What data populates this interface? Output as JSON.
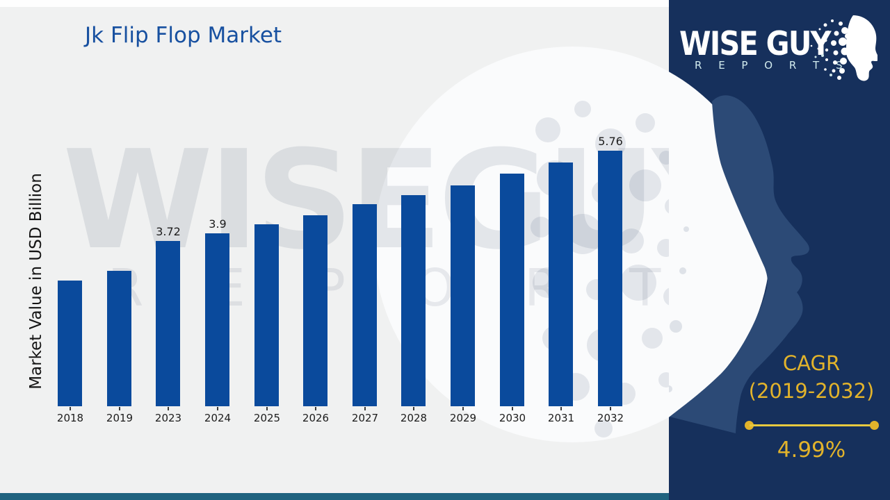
{
  "page": {
    "background": "#f0f1f1",
    "top_strip_color": "#fefefe",
    "bottom_strip_color": "#20637f"
  },
  "header": {
    "title": "Jk Flip Flop Market",
    "title_color": "#1750a0"
  },
  "watermark": {
    "line1": "WISEGUY",
    "line2": "R E P O R T S"
  },
  "brand_panel": {
    "bg_color": "#16305c",
    "face_color": "#2c4a76",
    "logo_line1": "WISE GUY",
    "logo_line2": "R E P O R T S",
    "cagr": {
      "label": "CAGR",
      "range": "(2019-2032)",
      "value": "4.99%",
      "accent_color": "#e2b32b"
    }
  },
  "chart_data": {
    "type": "bar",
    "title": "Jk Flip Flop Market",
    "xlabel": "",
    "ylabel": "Market Value in USD Billion",
    "categories": [
      "2018",
      "2019",
      "2023",
      "2024",
      "2025",
      "2026",
      "2027",
      "2028",
      "2029",
      "2030",
      "2031",
      "2032"
    ],
    "values": [
      2.83,
      3.05,
      3.72,
      3.9,
      4.1,
      4.3,
      4.55,
      4.75,
      4.98,
      5.25,
      5.5,
      5.76
    ],
    "labels": [
      "",
      "",
      "3.72",
      "3.9",
      "",
      "",
      "",
      "",
      "",
      "",
      "",
      "5.76"
    ],
    "ylim": [
      0,
      6.5
    ],
    "bar_color": "#0a4a9c",
    "grid": false,
    "legend": null
  }
}
